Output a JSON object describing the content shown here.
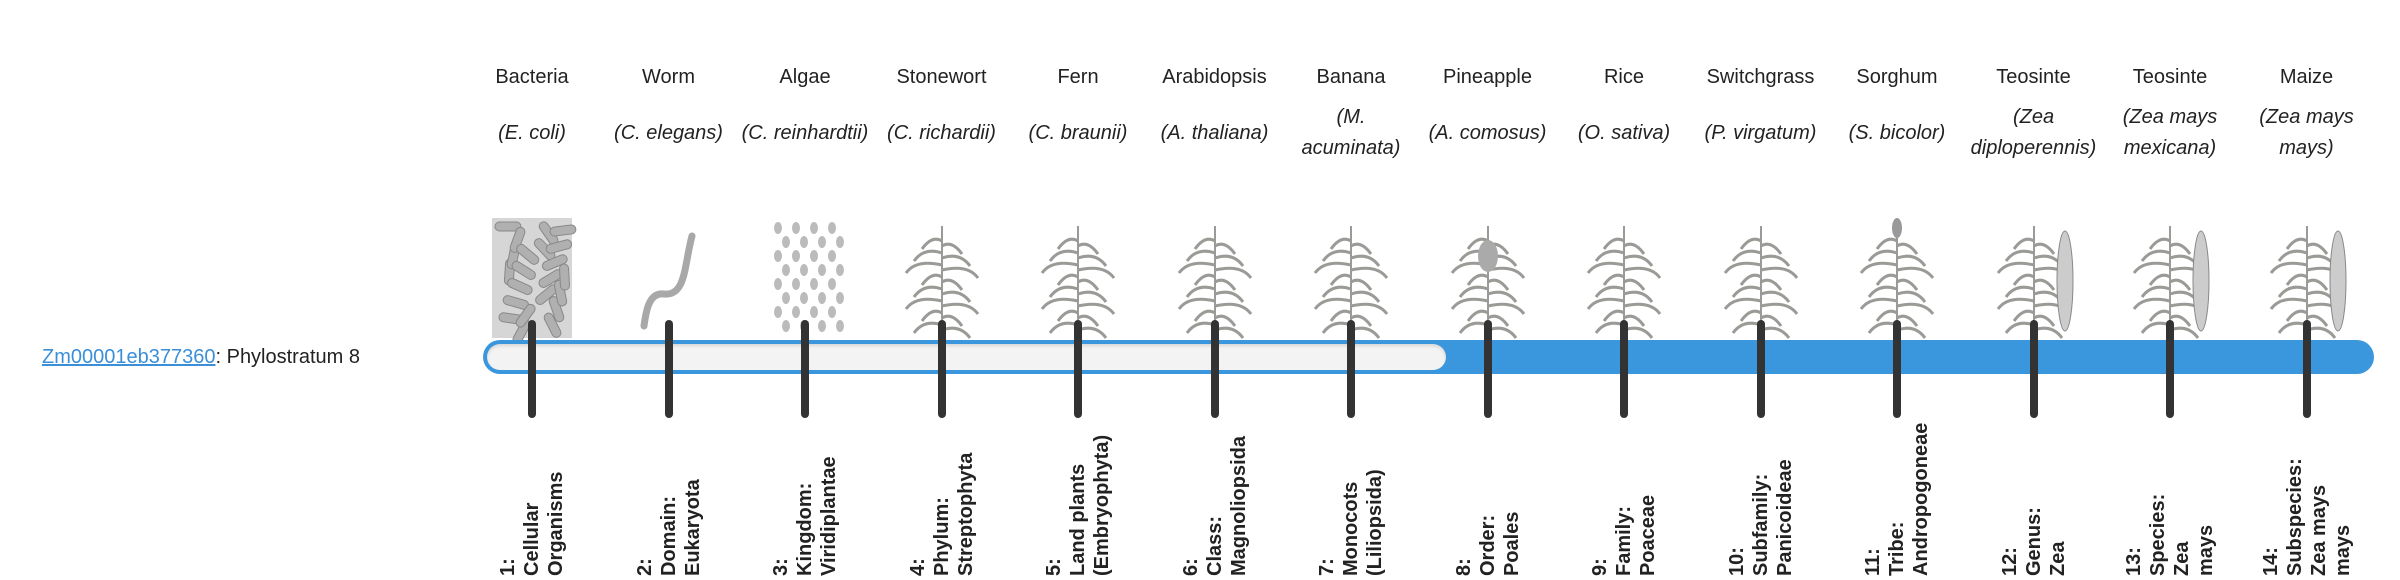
{
  "gene": {
    "id": "Zm00001eb377360",
    "suffix": ": Phylostratum 8"
  },
  "phylostratum": {
    "current": 8,
    "total": 14
  },
  "colors": {
    "bar": "#3a96dd",
    "tick": "#333333",
    "empty": "#f3f3f3",
    "link": "#3a8fd8"
  },
  "strata": [
    {
      "common": "Bacteria",
      "species": "(E. coli)",
      "icon": "bacteria-icon",
      "label_lines": [
        "1:",
        "Cellular",
        "Organisms"
      ]
    },
    {
      "common": "Worm",
      "species": "(C. elegans)",
      "icon": "worm-icon",
      "label_lines": [
        "2:",
        "Domain:",
        "Eukaryota"
      ]
    },
    {
      "common": "Algae",
      "species": "(C. reinhardtii)",
      "icon": "algae-icon",
      "label_lines": [
        "3:",
        "Kingdom:",
        "Viridiplantae"
      ]
    },
    {
      "common": "Stonewort",
      "species": "(C. richardii)",
      "icon": "stonewort-icon",
      "label_lines": [
        "4:",
        "Phylum:",
        "Streptophyta"
      ]
    },
    {
      "common": "Fern",
      "species": "(C. braunii)",
      "icon": "fern-icon",
      "label_lines": [
        "5:",
        "Land plants",
        "(Embryophyta)"
      ]
    },
    {
      "common": "Arabidopsis",
      "species": "(A. thaliana)",
      "icon": "arabidopsis-icon",
      "label_lines": [
        "6:",
        "Class:",
        "Magnoliopsida"
      ]
    },
    {
      "common": "Banana",
      "species": "(M. acuminata)",
      "icon": "banana-icon",
      "label_lines": [
        "7:",
        "Monocots",
        "(Liliopsida)"
      ]
    },
    {
      "common": "Pineapple",
      "species": "(A. comosus)",
      "icon": "pineapple-icon",
      "label_lines": [
        "8:",
        "Order:",
        "Poales"
      ]
    },
    {
      "common": "Rice",
      "species": "(O. sativa)",
      "icon": "rice-icon",
      "label_lines": [
        "9:",
        "Family:",
        "Poaceae"
      ]
    },
    {
      "common": "Switchgrass",
      "species": "(P. virgatum)",
      "icon": "switchgrass-icon",
      "label_lines": [
        "10:",
        "Subfamily:",
        "Panicoideae"
      ]
    },
    {
      "common": "Sorghum",
      "species": "(S. bicolor)",
      "icon": "sorghum-icon",
      "label_lines": [
        "11:",
        "Tribe:",
        "Andropogoneae"
      ]
    },
    {
      "common": "Teosinte",
      "species": "(Zea diploperennis)",
      "icon": "teosinte-icon",
      "label_lines": [
        "12:",
        "Genus:",
        "Zea"
      ]
    },
    {
      "common": "Teosinte",
      "species": "(Zea mays mexicana)",
      "icon": "teosinte-mexicana-icon",
      "label_lines": [
        "13:",
        "Species:",
        "Zea",
        "mays"
      ]
    },
    {
      "common": "Maize",
      "species": "(Zea mays mays)",
      "icon": "maize-icon",
      "label_lines": [
        "14:",
        "Subspecies:",
        "Zea mays",
        "mays"
      ]
    }
  ]
}
